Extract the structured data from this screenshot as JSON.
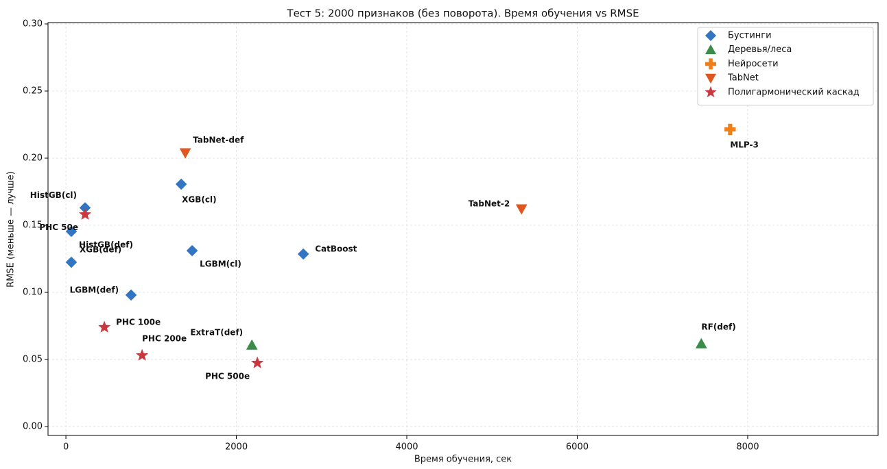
{
  "chart_data": {
    "type": "scatter",
    "title": "Тест 5: 2000 признаков (без поворота). Время обучения vs RMSE",
    "x_label": "Время обучения, сек",
    "y_label": "RMSE (меньше — лучше)",
    "xlim": [
      -210,
      9530
    ],
    "ylim": [
      -0.0066,
      0.301
    ],
    "xticks": [
      0,
      2000,
      4000,
      6000,
      8000
    ],
    "yticks": [
      {
        "value": 0,
        "label": "0.00"
      },
      {
        "value": 0.05,
        "label": "0.05"
      },
      {
        "value": 0.1,
        "label": "0.10"
      },
      {
        "value": 0.15,
        "label": "0.15"
      },
      {
        "value": 0.2,
        "label": "0.20"
      },
      {
        "value": 0.25,
        "label": "0.25"
      },
      {
        "value": 0.3,
        "label": "0.30"
      }
    ],
    "grid": true,
    "legend": "upper right",
    "series": [
      {
        "name": "Бустинги",
        "color": "#3276c3",
        "marker": "diamond",
        "x": [
          225,
          64,
          64,
          765,
          1353,
          1481,
          2786
        ],
        "values": [
          0.163,
          0.1454,
          0.1224,
          0.098,
          0.1806,
          0.1311,
          0.1286
        ],
        "labels": [
          "HistGB(cl)",
          "HistGB(def)",
          "XGB(def)",
          "LGBM(def)",
          "XGB(cl)",
          "LGBM(cl)",
          "CatBoost"
        ]
      },
      {
        "name": "Деревья/леса",
        "color": "#3b8c4b",
        "marker": "triangle-up",
        "x": [
          2182,
          7456
        ],
        "values": [
          0.0607,
          0.0617
        ],
        "labels": [
          "ExtraT(def)",
          "RF(def)"
        ]
      },
      {
        "name": "Нейросети",
        "color": "#f07f17",
        "marker": "plus",
        "x": [
          7794
        ],
        "values": [
          0.2214
        ],
        "labels": [
          "MLP-3"
        ]
      },
      {
        "name": "TabNet",
        "color": "#e0561f",
        "marker": "triangle-down",
        "x": [
          1401,
          5346
        ],
        "values": [
          0.204,
          0.1622
        ],
        "labels": [
          "TabNet-def",
          "TabNet-2"
        ]
      },
      {
        "name": "Полигармонический каскад",
        "color": "#c9383f",
        "marker": "star",
        "x": [
          225,
          451,
          894,
          2246
        ],
        "values": [
          0.158,
          0.074,
          0.053,
          0.0474
        ],
        "labels": [
          "PHC 50e",
          "PHC 100e",
          "PHC 200e",
          "PHC 500e"
        ]
      }
    ]
  }
}
